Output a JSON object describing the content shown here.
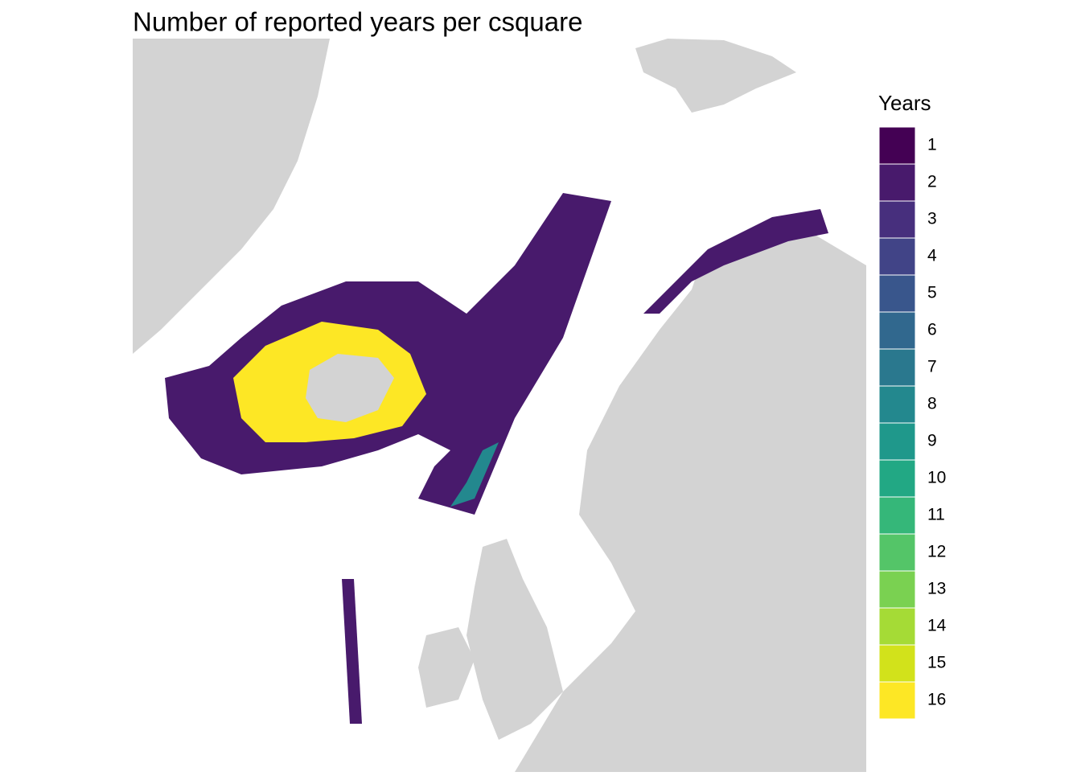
{
  "title": "Number of reported years per csquare",
  "legend": {
    "title": "Years",
    "items": [
      {
        "label": 1,
        "color": "#440154"
      },
      {
        "label": 2,
        "color": "#481a6c"
      },
      {
        "label": 3,
        "color": "#472f7d"
      },
      {
        "label": 4,
        "color": "#414487"
      },
      {
        "label": 5,
        "color": "#39568c"
      },
      {
        "label": 6,
        "color": "#31688e"
      },
      {
        "label": 7,
        "color": "#2a788e"
      },
      {
        "label": 8,
        "color": "#23888e"
      },
      {
        "label": 9,
        "color": "#1f988b"
      },
      {
        "label": 10,
        "color": "#22a884"
      },
      {
        "label": 11,
        "color": "#35b779"
      },
      {
        "label": 12,
        "color": "#54c568"
      },
      {
        "label": 13,
        "color": "#7ad151"
      },
      {
        "label": 14,
        "color": "#a5db36"
      },
      {
        "label": 15,
        "color": "#d2e21b"
      },
      {
        "label": 16,
        "color": "#fde725"
      }
    ]
  }
}
